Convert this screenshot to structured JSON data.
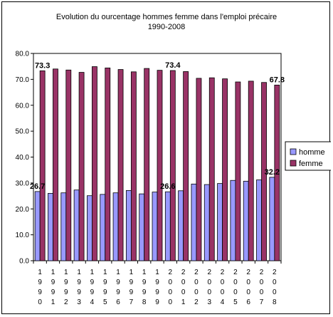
{
  "chart_data": {
    "type": "bar",
    "title": "Evolution du ourcentage hommes femme dans l'emploi précaire",
    "subtitle": "1990-2008",
    "categories": [
      "1990",
      "1991",
      "1992",
      "1993",
      "1994",
      "1995",
      "1996",
      "1997",
      "1998",
      "1999",
      "2000",
      "2001",
      "2002",
      "2003",
      "2004",
      "2005",
      "2006",
      "2007",
      "2008"
    ],
    "series": [
      {
        "name": "homme",
        "color": "#9999ff",
        "values": [
          26.7,
          26.0,
          26.2,
          27.3,
          25.1,
          25.6,
          26.2,
          27.1,
          25.8,
          26.5,
          26.6,
          27.0,
          29.6,
          29.4,
          29.8,
          31.0,
          30.7,
          31.2,
          32.2
        ]
      },
      {
        "name": "femme",
        "color": "#993366",
        "values": [
          73.3,
          74.0,
          73.6,
          72.7,
          74.9,
          74.4,
          73.8,
          72.9,
          74.2,
          73.5,
          73.4,
          73.0,
          70.4,
          70.6,
          70.2,
          69.0,
          69.3,
          68.8,
          67.8
        ]
      }
    ],
    "ylim": [
      0,
      80
    ],
    "yticks": [
      "0.0",
      "10.0",
      "20.0",
      "30.0",
      "40.0",
      "50.0",
      "60.0",
      "70.0",
      "80.0"
    ],
    "grid": false,
    "legend_position": "right",
    "data_labels": [
      {
        "series": "femme",
        "index": 0,
        "text": "73.3"
      },
      {
        "series": "femme",
        "index": 10,
        "text": "73.4"
      },
      {
        "series": "femme",
        "index": 18,
        "text": "67.8"
      },
      {
        "series": "homme",
        "index": 0,
        "text": "26.7"
      },
      {
        "series": "homme",
        "index": 10,
        "text": "26.6"
      },
      {
        "series": "homme",
        "index": 18,
        "text": "32.2"
      }
    ]
  }
}
